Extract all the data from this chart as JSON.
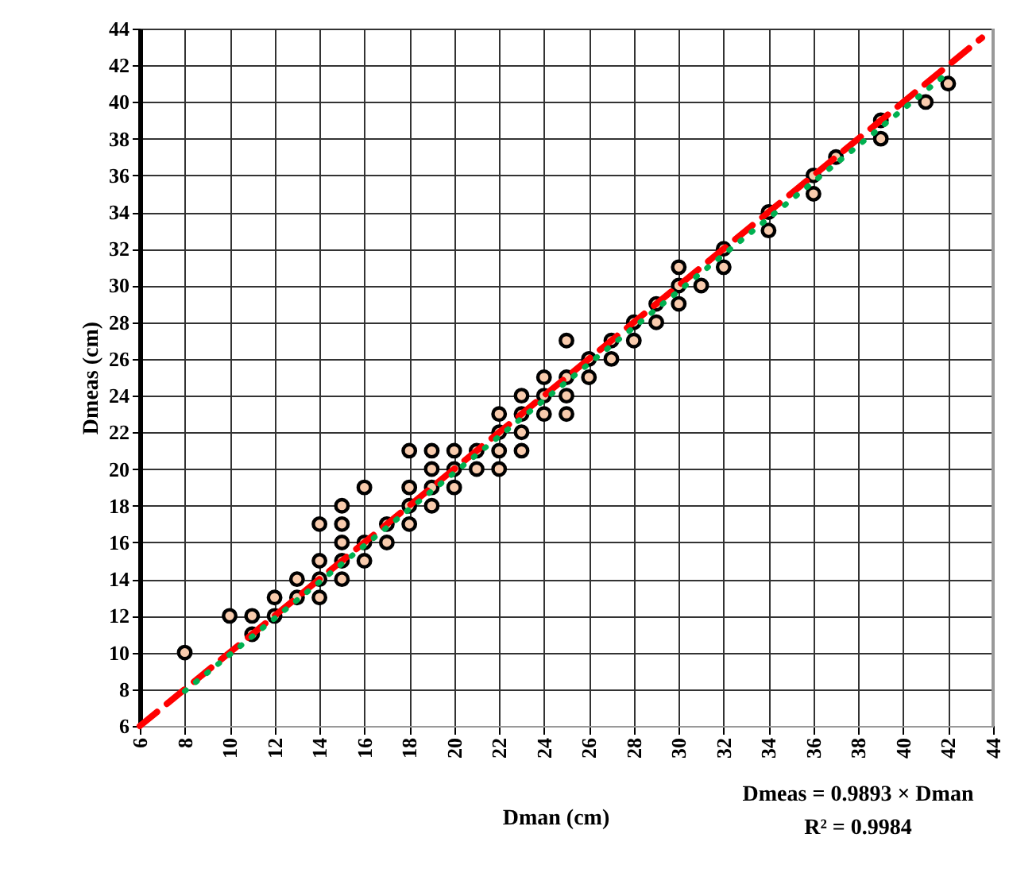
{
  "chart_data": {
    "type": "scatter",
    "xlabel": "Dman (cm)",
    "ylabel": "Dmeas (cm)",
    "annotations": [
      "Dmeas = 0.9893 × Dman",
      "R² = 0.9984"
    ],
    "xlim": [
      6,
      44
    ],
    "ylim": [
      6,
      44
    ],
    "xticks": [
      6,
      8,
      10,
      12,
      14,
      16,
      18,
      20,
      22,
      24,
      26,
      28,
      30,
      32,
      34,
      36,
      38,
      40,
      42,
      44
    ],
    "yticks": [
      6,
      8,
      10,
      12,
      14,
      16,
      18,
      20,
      22,
      24,
      26,
      28,
      30,
      32,
      34,
      36,
      38,
      40,
      42,
      44
    ],
    "grid": true,
    "series": [
      {
        "color": "#f8cbad",
        "marker": "circle",
        "x": [
          8,
          10,
          11,
          11,
          12,
          12,
          13,
          13,
          14,
          14,
          14,
          14,
          15,
          15,
          15,
          15,
          15,
          16,
          16,
          16,
          17,
          17,
          18,
          18,
          18,
          18,
          19,
          19,
          19,
          19,
          20,
          20,
          20,
          21,
          21,
          22,
          22,
          22,
          22,
          23,
          23,
          23,
          23,
          24,
          24,
          24,
          25,
          25,
          25,
          25,
          26,
          26,
          27,
          27,
          28,
          28,
          29,
          29,
          30,
          30,
          30,
          31,
          32,
          32,
          34,
          34,
          36,
          36,
          37,
          39,
          39,
          41,
          42
        ],
        "values": [
          10,
          12,
          12,
          11,
          13,
          12,
          14,
          13,
          17,
          15,
          14,
          13,
          18,
          17,
          16,
          15,
          14,
          19,
          16,
          15,
          17,
          16,
          21,
          19,
          18,
          17,
          21,
          20,
          19,
          18,
          21,
          20,
          19,
          21,
          20,
          23,
          22,
          21,
          20,
          24,
          23,
          22,
          21,
          25,
          24,
          23,
          27,
          25,
          24,
          23,
          26,
          25,
          27,
          26,
          28,
          27,
          29,
          28,
          31,
          30,
          29,
          30,
          32,
          31,
          34,
          33,
          36,
          35,
          37,
          39,
          38,
          40,
          41
        ]
      },
      {
        "type": "line",
        "color": "#ff0000",
        "line_style": "dashed",
        "marker": "none",
        "x": [
          6,
          43.5
        ],
        "values": [
          6,
          43.5
        ]
      },
      {
        "type": "line",
        "color": "#00b050",
        "line_style": "dotted",
        "marker": "none",
        "x": [
          8,
          42
        ],
        "values": [
          7.9,
          41.6
        ]
      }
    ]
  }
}
